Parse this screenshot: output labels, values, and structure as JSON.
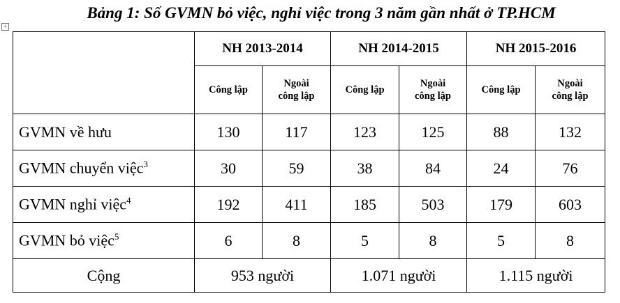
{
  "title": "Bảng 1: Số GVMN bỏ việc, nghỉ việc trong 3 năm gần nhất ở TP.HCM",
  "table": {
    "groups": [
      "NH 2013-2014",
      "NH 2014-2015",
      "NH 2015-2016"
    ],
    "subheaders": [
      "Công lập",
      "Ngoài công lập",
      "Công lập",
      "Ngoài công lập",
      "Công lập",
      "Ngoài công lập"
    ],
    "rows": [
      {
        "label": "GVMN về hưu",
        "values": [
          130,
          117,
          123,
          125,
          88,
          132
        ]
      },
      {
        "label": "GVMN chuyển việc",
        "note": "3",
        "values": [
          30,
          59,
          38,
          84,
          24,
          76
        ]
      },
      {
        "label": "GVMN nghỉ việc",
        "note": "4",
        "values": [
          192,
          411,
          185,
          503,
          179,
          603
        ]
      },
      {
        "label": "GVMN bỏ việc",
        "note": "5",
        "values": [
          6,
          8,
          5,
          8,
          5,
          8
        ]
      }
    ],
    "total": {
      "label": "Cộng",
      "values": [
        "953 người",
        "1.071 người",
        "1.115 người"
      ]
    }
  }
}
